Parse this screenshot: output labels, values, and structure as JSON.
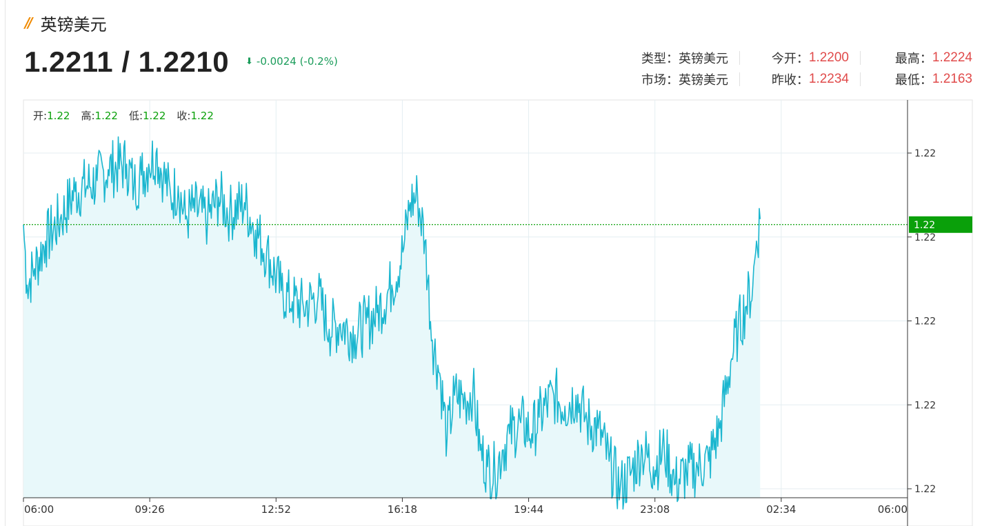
{
  "header": {
    "title_mark": "//",
    "title": "英镑美元",
    "price": "1.2211 / 1.2210",
    "change_arrow": "⬇",
    "change": "-0.0024 (-0.2%)"
  },
  "stats": {
    "type_label": "类型：",
    "type_value": "英镑美元",
    "market_label": "市场：",
    "market_value": "英镑美元",
    "open_label": "今开：",
    "open_value": "1.2200",
    "prev_close_label": "昨收：",
    "prev_close_value": "1.2234",
    "high_label": "最高：",
    "high_value": "1.2224",
    "low_label": "最低：",
    "low_value": "1.2163"
  },
  "ohlc": {
    "open_label": "开:",
    "open_value": "1.22",
    "high_label": "高:",
    "high_value": "1.22",
    "low_label": "低:",
    "low_value": "1.22",
    "close_label": "收:",
    "close_value": "1.22"
  },
  "colors": {
    "line": "#1bb6cf",
    "area": "#e8f8fa",
    "up": "#0aa00a",
    "down": "#1a9c5a",
    "red": "#e04a4a",
    "accent": "#f08a00"
  },
  "chart_data": {
    "type": "area",
    "x_ticks": [
      "06:00",
      "09:26",
      "12:52",
      "16:18",
      "19:44",
      "23:08",
      "02:34",
      "06:00"
    ],
    "y_ticks": [
      "1.22",
      "1.22",
      "1.22",
      "1.22",
      "1.22"
    ],
    "y_range": [
      1.2163,
      1.2224
    ],
    "current_label": "1.22",
    "current_value": 1.2211,
    "anchors": [
      [
        0,
        1.2211
      ],
      [
        0.1,
        1.22
      ],
      [
        0.3,
        1.2203
      ],
      [
        0.6,
        1.2208
      ],
      [
        1.0,
        1.2212
      ],
      [
        1.4,
        1.2217
      ],
      [
        2.0,
        1.2219
      ],
      [
        2.3,
        1.2221
      ],
      [
        2.8,
        1.2222
      ],
      [
        3.0,
        1.2218
      ],
      [
        3.2,
        1.222
      ],
      [
        3.4,
        1.2222
      ],
      [
        3.6,
        1.2224
      ],
      [
        3.8,
        1.222
      ],
      [
        4.0,
        1.2216
      ],
      [
        4.2,
        1.2218
      ],
      [
        4.4,
        1.2212
      ],
      [
        4.6,
        1.2214
      ],
      [
        5.0,
        1.2212
      ],
      [
        5.3,
        1.2216
      ],
      [
        5.6,
        1.2213
      ],
      [
        6.0,
        1.2215
      ],
      [
        6.3,
        1.221
      ],
      [
        6.6,
        1.2206
      ],
      [
        7.0,
        1.2199
      ],
      [
        7.3,
        1.2197
      ],
      [
        7.6,
        1.2196
      ],
      [
        8.0,
        1.2198
      ],
      [
        8.3,
        1.2192
      ],
      [
        8.6,
        1.2193
      ],
      [
        9.0,
        1.2191
      ],
      [
        9.3,
        1.2193
      ],
      [
        9.6,
        1.2195
      ],
      [
        10.0,
        1.22
      ],
      [
        10.3,
        1.2206
      ],
      [
        10.5,
        1.2215
      ],
      [
        10.7,
        1.2216
      ],
      [
        10.9,
        1.2208
      ],
      [
        11.1,
        1.219
      ],
      [
        11.3,
        1.2184
      ],
      [
        11.5,
        1.2172
      ],
      [
        11.7,
        1.218
      ],
      [
        12.0,
        1.2179
      ],
      [
        12.2,
        1.2181
      ],
      [
        12.4,
        1.217
      ],
      [
        12.6,
        1.2167
      ],
      [
        12.8,
        1.2166
      ],
      [
        13.0,
        1.217
      ],
      [
        13.2,
        1.2173
      ],
      [
        13.5,
        1.2175
      ],
      [
        13.8,
        1.2173
      ],
      [
        14.0,
        1.2176
      ],
      [
        14.4,
        1.218
      ],
      [
        14.7,
        1.2178
      ],
      [
        15.0,
        1.218
      ],
      [
        15.3,
        1.2175
      ],
      [
        15.6,
        1.2174
      ],
      [
        15.9,
        1.2168
      ],
      [
        16.2,
        1.2163
      ],
      [
        16.5,
        1.2166
      ],
      [
        16.8,
        1.217
      ],
      [
        17.1,
        1.2167
      ],
      [
        17.4,
        1.217
      ],
      [
        17.7,
        1.2164
      ],
      [
        18.0,
        1.2166
      ],
      [
        18.3,
        1.2167
      ],
      [
        18.6,
        1.2168
      ],
      [
        18.9,
        1.2174
      ],
      [
        19.2,
        1.2186
      ],
      [
        19.4,
        1.2192
      ],
      [
        19.6,
        1.2196
      ],
      [
        19.8,
        1.22
      ],
      [
        19.9,
        1.2208
      ],
      [
        20.0,
        1.2212
      ]
    ],
    "x_range_hours": [
      0,
      24
    ],
    "grid": true
  }
}
